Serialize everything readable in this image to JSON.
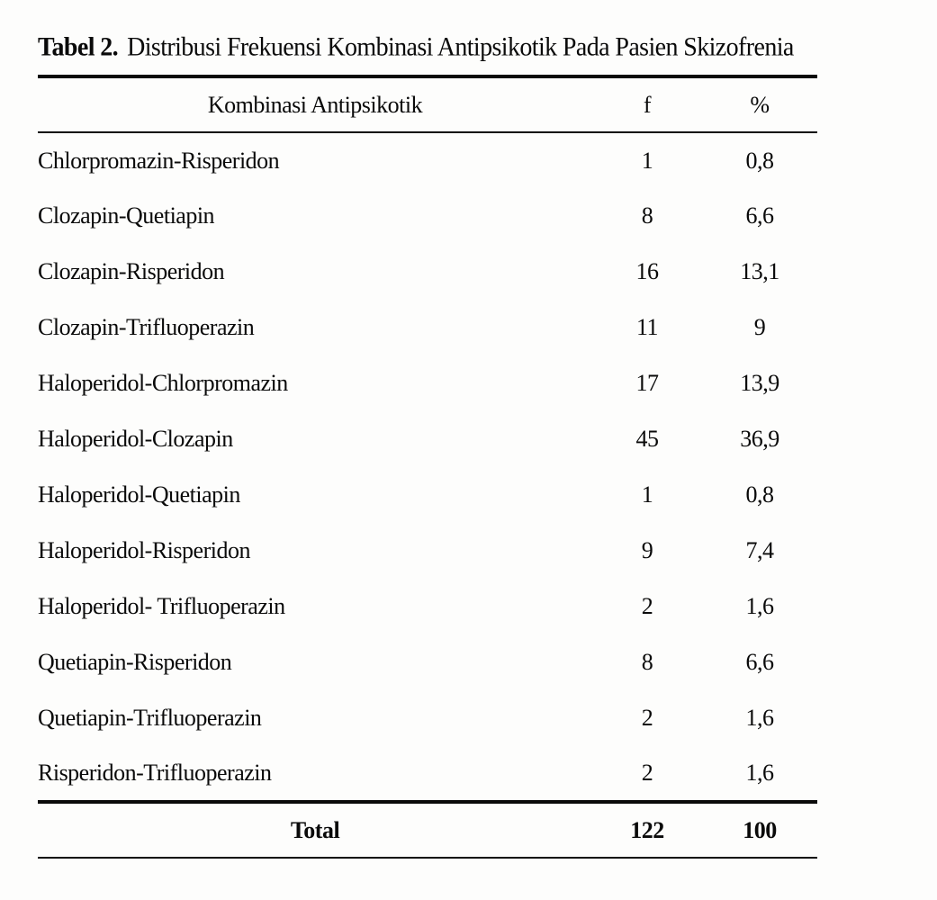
{
  "caption": {
    "label": "Tabel 2.",
    "text": "Distribusi Frekuensi Kombinasi Antipsikotik Pada Pasien Skizofrenia"
  },
  "table": {
    "columns": [
      "Kombinasi Antipsikotik",
      "f",
      "%"
    ],
    "rows": [
      {
        "combination": "Chlorpromazin-Risperidon",
        "f": "1",
        "pct": "0,8"
      },
      {
        "combination": "Clozapin-Quetiapin",
        "f": "8",
        "pct": "6,6"
      },
      {
        "combination": "Clozapin-Risperidon",
        "f": "16",
        "pct": "13,1"
      },
      {
        "combination": "Clozapin-Trifluoperazin",
        "f": "11",
        "pct": "9"
      },
      {
        "combination": "Haloperidol-Chlorpromazin",
        "f": "17",
        "pct": "13,9"
      },
      {
        "combination": "Haloperidol-Clozapin",
        "f": "45",
        "pct": "36,9"
      },
      {
        "combination": "Haloperidol-Quetiapin",
        "f": "1",
        "pct": "0,8"
      },
      {
        "combination": "Haloperidol-Risperidon",
        "f": "9",
        "pct": "7,4"
      },
      {
        "combination": "Haloperidol- Trifluoperazin",
        "f": "2",
        "pct": "1,6"
      },
      {
        "combination": "Quetiapin-Risperidon",
        "f": "8",
        "pct": "6,6"
      },
      {
        "combination": "Quetiapin-Trifluoperazin",
        "f": "2",
        "pct": "1,6"
      },
      {
        "combination": "Risperidon-Trifluoperazin",
        "f": "2",
        "pct": "1,6"
      }
    ],
    "total": {
      "label": "Total",
      "f": "122",
      "pct": "100"
    }
  }
}
